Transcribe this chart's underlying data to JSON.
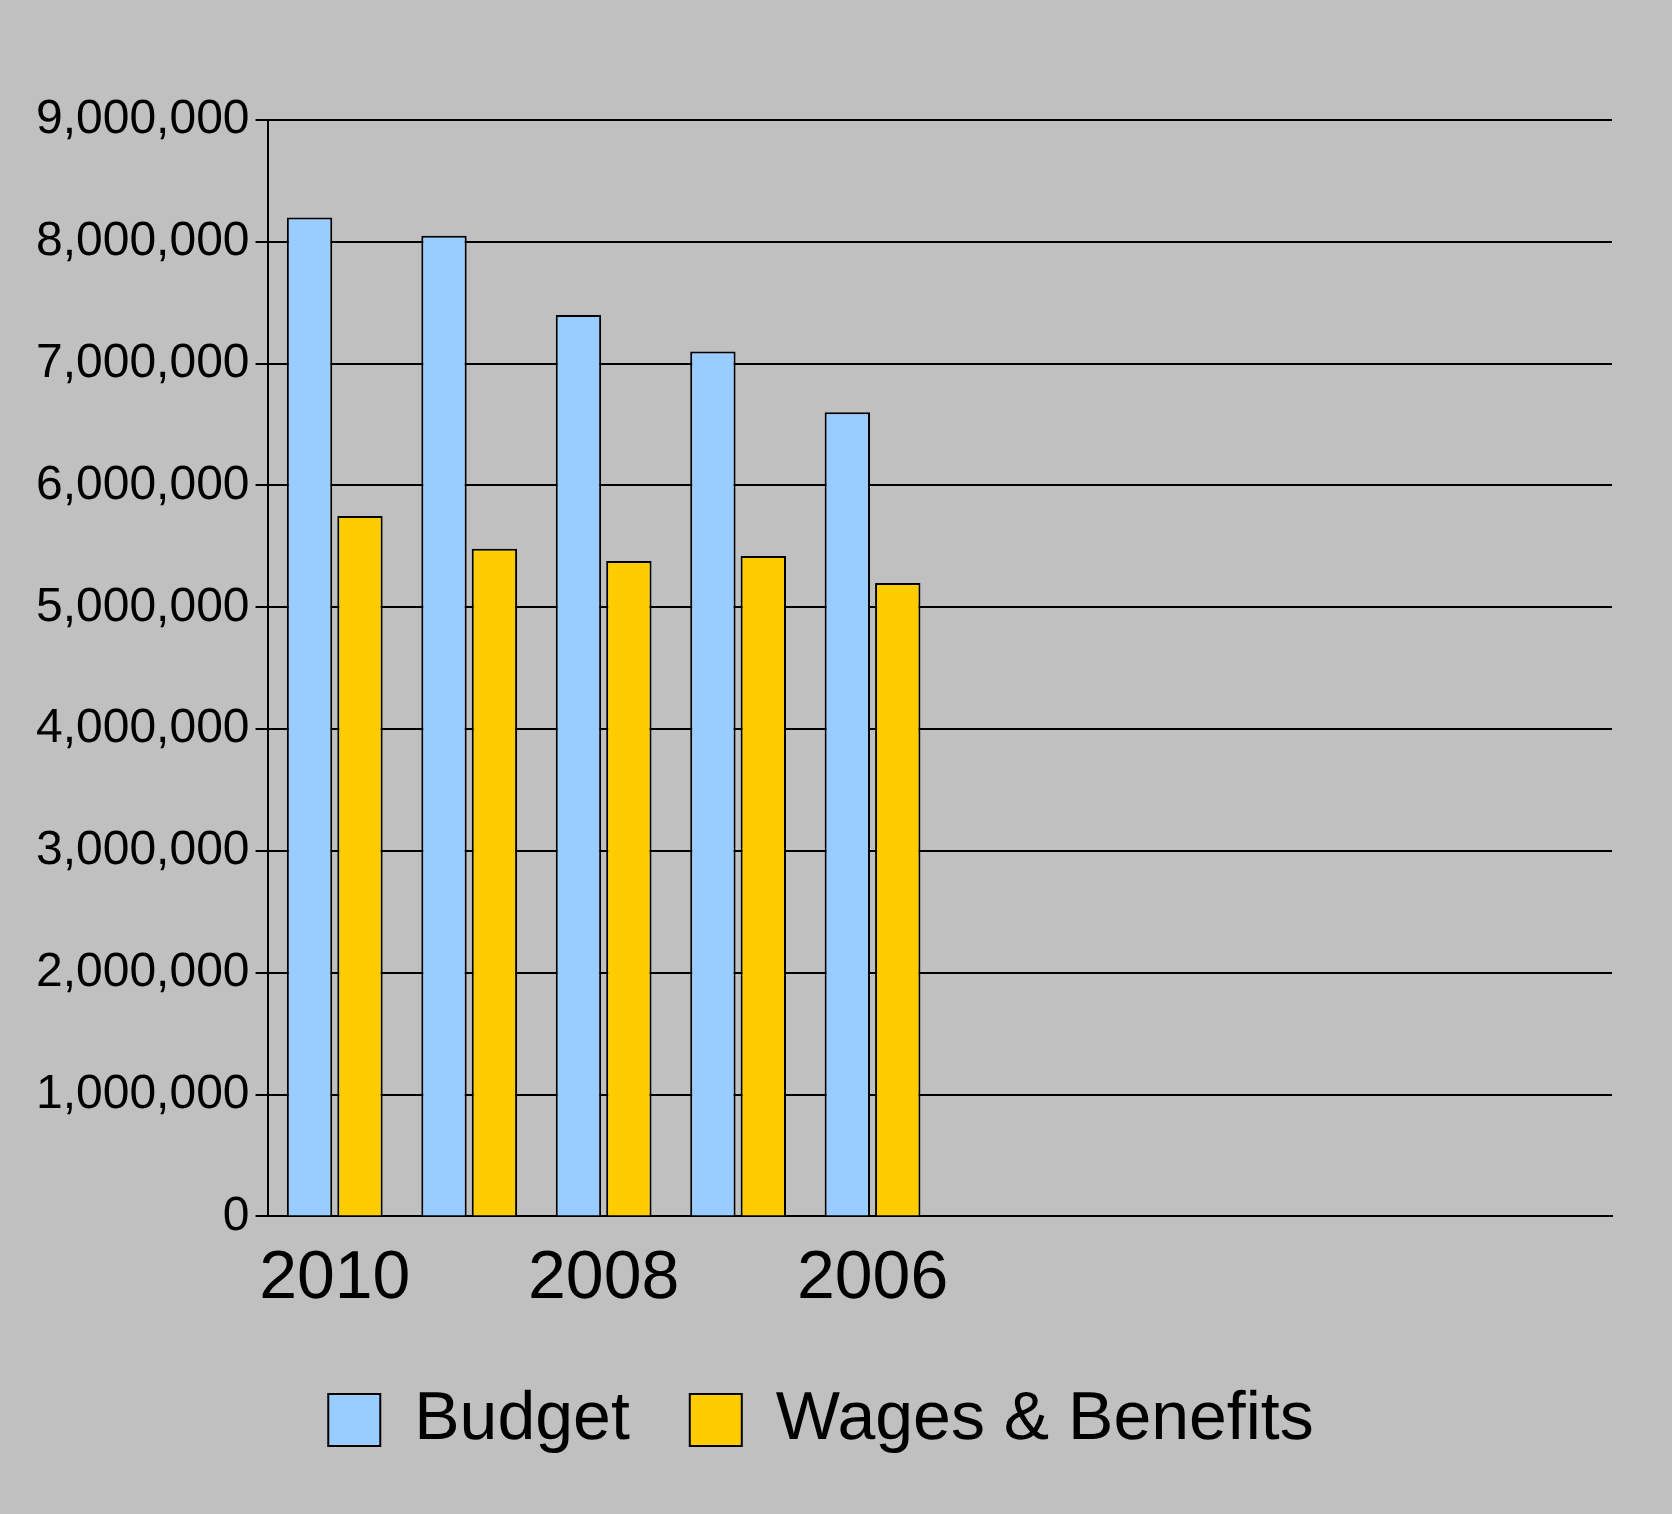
{
  "chart_data": {
    "type": "bar",
    "categories": [
      "2010",
      null,
      "2008",
      null,
      "2006",
      null,
      null,
      null,
      null,
      null
    ],
    "series": [
      {
        "name": "Budget",
        "color": "#99ccff",
        "values": [
          8200000,
          8050000,
          7400000,
          7100000,
          6600000,
          null,
          null,
          null,
          null,
          null
        ]
      },
      {
        "name": "Wages & Benefits",
        "color": "#ffcc00",
        "values": [
          5750000,
          5480000,
          5380000,
          5420000,
          5200000,
          null,
          null,
          null,
          null,
          null
        ]
      }
    ],
    "ylim": [
      0,
      9000000
    ],
    "yticks": [
      {
        "value": 0,
        "label": "0"
      },
      {
        "value": 1000000,
        "label": "1,000,000"
      },
      {
        "value": 2000000,
        "label": "2,000,000"
      },
      {
        "value": 3000000,
        "label": "3,000,000"
      },
      {
        "value": 4000000,
        "label": "4,000,000"
      },
      {
        "value": 5000000,
        "label": "5,000,000"
      },
      {
        "value": 6000000,
        "label": "6,000,000"
      },
      {
        "value": 7000000,
        "label": "7,000,000"
      },
      {
        "value": 8000000,
        "label": "8,000,000"
      },
      {
        "value": 9000000,
        "label": "9,000,000"
      }
    ],
    "grid": "y",
    "legend": "bottom"
  }
}
